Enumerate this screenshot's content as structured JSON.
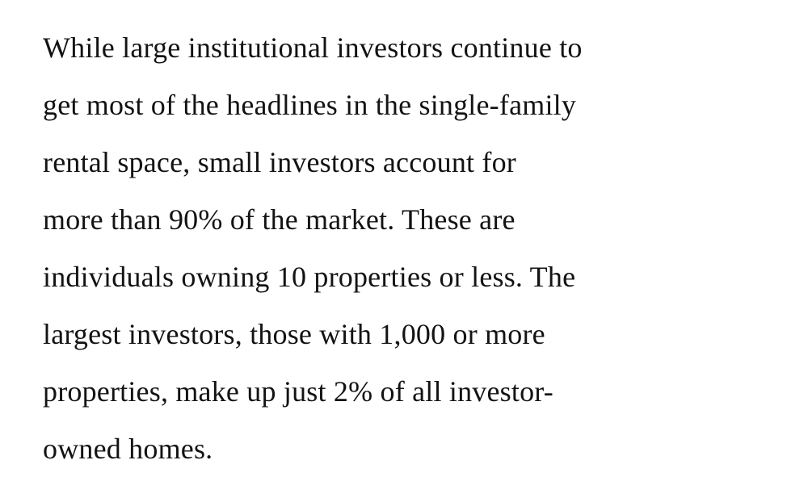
{
  "article": {
    "paragraph_text": "While large institutional investors continue to get most of the headlines in the single-family rental space, small investors account for more than 90% of the market. These are individuals owning 10 properties or less. The largest investors, those with 1,000 or more properties, make up just 2% of all investor-owned homes.",
    "lines": [
      "While large institutional investors continue to",
      "get most of the headlines in the single-family",
      "rental space, small investors account for",
      "more than 90% of the market. These are",
      "individuals owning 10 properties or less. The",
      "largest investors, those with 1,000 or more",
      "properties, make up just 2% of all investor-",
      "owned homes."
    ],
    "colors": {
      "text": "#131313",
      "background": "#ffffff"
    }
  }
}
